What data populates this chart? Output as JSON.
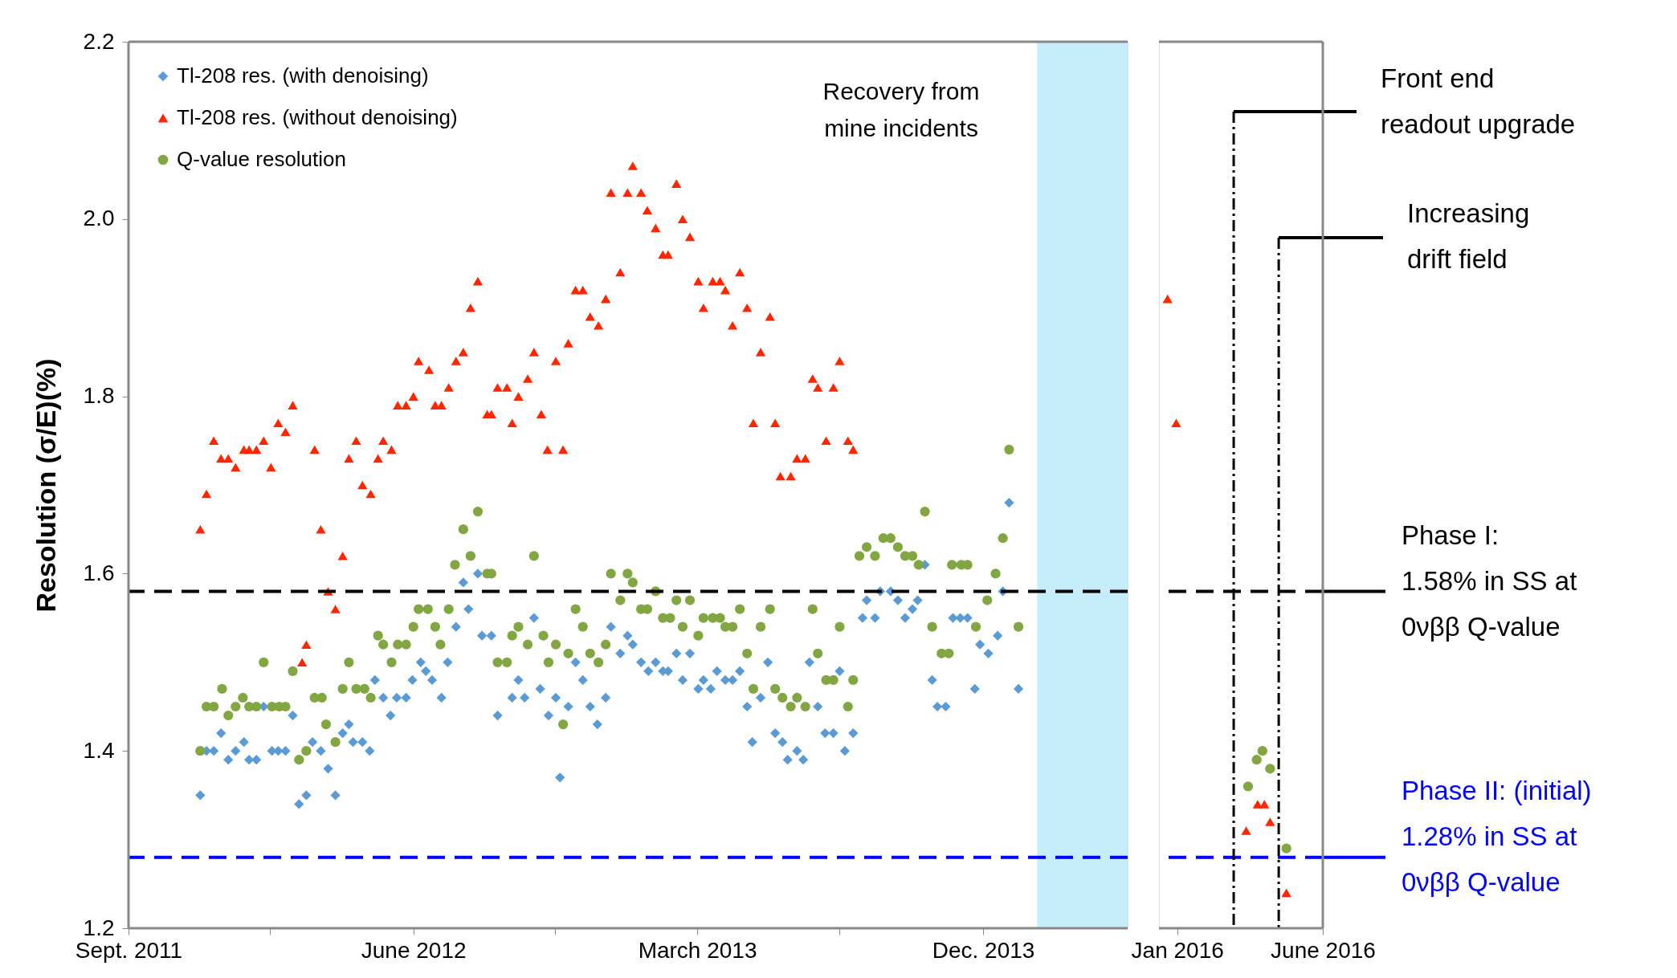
{
  "chart_data": [
    {
      "type": "scatter",
      "ylabel": "Resolution (σ/E)(%)",
      "xlim": [
        "2011-09-01",
        "2014-04-19"
      ],
      "xticks": [
        {
          "value": "2011-09-01",
          "label": "Sept. 2011"
        },
        {
          "value": "2012-01-15",
          "label": null
        },
        {
          "value": "2012-06-01",
          "label": "June 2012"
        },
        {
          "value": "2012-10-15",
          "label": null
        },
        {
          "value": "2013-03-01",
          "label": "March 2013"
        },
        {
          "value": "2013-07-16",
          "label": null
        },
        {
          "value": "2013-12-01",
          "label": "Dec. 2013"
        }
      ],
      "ylim": [
        1.2,
        2.2
      ],
      "yticks": [
        1.2,
        1.4,
        1.6,
        1.8,
        {
          "value": 2.0,
          "label": "2.0"
        },
        2.2
      ],
      "grid": false,
      "legend": "top left",
      "series": [
        {
          "name": "Tl-208 res. (with denoising)",
          "color": "#5b9bd5",
          "marker": "diamond",
          "x": [
            "2011-11-09",
            "2011-11-15",
            "2011-11-22",
            "2011-11-29",
            "2011-12-06",
            "2011-12-13",
            "2011-12-21",
            "2011-12-26",
            "2012-01-02",
            "2012-01-09",
            "2012-01-17",
            "2012-01-23",
            "2012-01-30",
            "2012-02-06",
            "2012-02-12",
            "2012-02-19",
            "2012-02-25",
            "2012-03-04",
            "2012-03-11",
            "2012-03-18",
            "2012-03-25",
            "2012-03-31",
            "2012-04-04",
            "2012-04-13",
            "2012-04-20",
            "2012-04-25",
            "2012-05-03",
            "2012-05-10",
            "2012-05-16",
            "2012-05-25",
            "2012-05-31",
            "2012-06-08",
            "2012-06-13",
            "2012-06-19",
            "2012-06-28",
            "2012-07-04",
            "2012-07-12",
            "2012-07-19",
            "2012-07-24",
            "2012-08-02",
            "2012-08-06",
            "2012-08-15",
            "2012-08-21",
            "2012-09-04",
            "2012-09-10",
            "2012-09-16",
            "2012-09-25",
            "2012-10-01",
            "2012-10-09",
            "2012-10-16",
            "2012-10-20",
            "2012-10-28",
            "2012-11-04",
            "2012-11-11",
            "2012-11-18",
            "2012-11-25",
            "2012-12-03",
            "2012-12-08",
            "2012-12-17",
            "2012-12-24",
            "2012-12-29",
            "2013-01-06",
            "2013-01-13",
            "2013-01-20",
            "2013-01-27",
            "2013-02-01",
            "2013-02-09",
            "2013-02-15",
            "2013-02-22",
            "2013-03-02",
            "2013-03-07",
            "2013-03-14",
            "2013-03-20",
            "2013-03-28",
            "2013-04-04",
            "2013-04-11",
            "2013-04-18",
            "2013-04-23",
            "2013-05-01",
            "2013-05-08",
            "2013-05-15",
            "2013-05-22",
            "2013-05-27",
            "2013-06-05",
            "2013-06-11",
            "2013-06-17",
            "2013-06-25",
            "2013-07-02",
            "2013-07-10",
            "2013-07-16",
            "2013-07-21",
            "2013-07-29",
            "2013-08-07",
            "2013-08-11",
            "2013-08-19",
            "2013-08-24",
            "2013-09-03",
            "2013-09-10",
            "2013-09-17",
            "2013-09-24",
            "2013-09-29",
            "2013-10-06",
            "2013-10-13",
            "2013-10-18",
            "2013-10-26",
            "2013-11-02",
            "2013-11-09",
            "2013-11-16",
            "2013-11-23",
            "2013-11-28",
            "2013-12-06",
            "2013-12-15",
            "2013-12-20",
            "2013-12-26",
            "2014-01-04"
          ],
          "values": [
            1.35,
            1.4,
            1.4,
            1.42,
            1.39,
            1.4,
            1.41,
            1.39,
            1.39,
            1.45,
            1.4,
            1.4,
            1.4,
            1.44,
            1.34,
            1.35,
            1.41,
            1.4,
            1.38,
            1.35,
            1.42,
            1.43,
            1.41,
            1.41,
            1.4,
            1.48,
            1.46,
            1.44,
            1.46,
            1.46,
            1.48,
            1.5,
            1.49,
            1.48,
            1.46,
            1.5,
            1.54,
            1.59,
            1.56,
            1.6,
            1.53,
            1.53,
            1.44,
            1.46,
            1.48,
            1.46,
            1.55,
            1.47,
            1.44,
            1.46,
            1.37,
            1.45,
            1.5,
            1.48,
            1.45,
            1.43,
            1.46,
            1.54,
            1.51,
            1.53,
            1.52,
            1.5,
            1.49,
            1.5,
            1.49,
            1.49,
            1.51,
            1.48,
            1.51,
            1.47,
            1.48,
            1.47,
            1.49,
            1.48,
            1.48,
            1.49,
            1.45,
            1.41,
            1.46,
            1.5,
            1.42,
            1.41,
            1.39,
            1.4,
            1.39,
            1.5,
            1.45,
            1.42,
            1.42,
            1.49,
            1.4,
            1.42,
            1.55,
            1.57,
            1.55,
            1.58,
            1.58,
            1.57,
            1.55,
            1.56,
            1.57,
            1.61,
            1.48,
            1.45,
            1.45,
            1.55,
            1.55,
            1.55,
            1.47,
            1.52,
            1.51,
            1.53,
            1.58,
            1.68,
            1.47
          ]
        },
        {
          "name": "Tl-208 res. (without denoising)",
          "color": "#ff2600",
          "marker": "triangle",
          "x": [
            "2011-11-09",
            "2011-11-15",
            "2011-11-22",
            "2011-11-29",
            "2011-12-06",
            "2011-12-13",
            "2011-12-21",
            "2011-12-26",
            "2012-01-02",
            "2012-01-09",
            "2012-01-16",
            "2012-01-23",
            "2012-01-30",
            "2012-02-06",
            "2012-02-15",
            "2012-02-19",
            "2012-02-27",
            "2012-03-04",
            "2012-03-11",
            "2012-03-18",
            "2012-03-25",
            "2012-03-31",
            "2012-04-07",
            "2012-04-13",
            "2012-04-21",
            "2012-04-28",
            "2012-05-03",
            "2012-05-11",
            "2012-05-17",
            "2012-05-25",
            "2012-06-01",
            "2012-06-06",
            "2012-06-16",
            "2012-06-22",
            "2012-06-28",
            "2012-07-05",
            "2012-07-12",
            "2012-07-19",
            "2012-07-26",
            "2012-08-02",
            "2012-08-11",
            "2012-08-15",
            "2012-08-21",
            "2012-08-30",
            "2012-09-04",
            "2012-09-10",
            "2012-09-19",
            "2012-09-25",
            "2012-10-02",
            "2012-10-08",
            "2012-10-16",
            "2012-10-23",
            "2012-10-28",
            "2012-11-04",
            "2012-11-11",
            "2012-11-18",
            "2012-11-26",
            "2012-12-03",
            "2012-12-08",
            "2012-12-17",
            "2012-12-24",
            "2012-12-29",
            "2013-01-06",
            "2013-01-12",
            "2013-01-20",
            "2013-01-27",
            "2013-02-01",
            "2013-02-09",
            "2013-02-15",
            "2013-02-22",
            "2013-03-02",
            "2013-03-07",
            "2013-03-16",
            "2013-03-23",
            "2013-03-28",
            "2013-04-04",
            "2013-04-11",
            "2013-04-18",
            "2013-04-24",
            "2013-05-01",
            "2013-05-10",
            "2013-05-15",
            "2013-05-20",
            "2013-05-30",
            "2013-06-05",
            "2013-06-13",
            "2013-06-20",
            "2013-06-25",
            "2013-07-03",
            "2013-07-10",
            "2013-07-16",
            "2013-07-24",
            "2013-07-29"
          ],
          "values": [
            1.65,
            1.69,
            1.75,
            1.73,
            1.73,
            1.72,
            1.74,
            1.74,
            1.74,
            1.75,
            1.72,
            1.77,
            1.76,
            1.79,
            1.5,
            1.52,
            1.74,
            1.65,
            1.58,
            1.56,
            1.62,
            1.73,
            1.75,
            1.7,
            1.69,
            1.73,
            1.75,
            1.74,
            1.79,
            1.79,
            1.8,
            1.84,
            1.83,
            1.79,
            1.79,
            1.81,
            1.84,
            1.85,
            1.9,
            1.93,
            1.78,
            1.78,
            1.81,
            1.81,
            1.77,
            1.8,
            1.82,
            1.85,
            1.78,
            1.74,
            1.84,
            1.74,
            1.86,
            1.92,
            1.92,
            1.89,
            1.88,
            1.91,
            2.03,
            1.94,
            2.03,
            2.06,
            2.03,
            2.01,
            1.99,
            1.96,
            1.96,
            2.04,
            2.0,
            1.98,
            1.93,
            1.9,
            1.93,
            1.93,
            1.92,
            1.88,
            1.94,
            1.9,
            1.77,
            1.85,
            1.89,
            1.77,
            1.71,
            1.71,
            1.73,
            1.73,
            1.82,
            1.81,
            1.75,
            1.81,
            1.84,
            1.75,
            1.74
          ]
        },
        {
          "name": "Q-value resolution",
          "color": "#82a641",
          "marker": "circle",
          "x": [
            "2011-11-09",
            "2011-11-15",
            "2011-11-22",
            "2011-11-30",
            "2011-12-06",
            "2011-12-13",
            "2011-12-20",
            "2011-12-26",
            "2012-01-02",
            "2012-01-09",
            "2012-01-17",
            "2012-01-24",
            "2012-01-30",
            "2012-02-06",
            "2012-02-12",
            "2012-02-19",
            "2012-02-27",
            "2012-03-05",
            "2012-03-09",
            "2012-03-18",
            "2012-03-25",
            "2012-03-31",
            "2012-04-07",
            "2012-04-15",
            "2012-04-21",
            "2012-04-28",
            "2012-05-03",
            "2012-05-11",
            "2012-05-17",
            "2012-05-25",
            "2012-06-01",
            "2012-06-06",
            "2012-06-15",
            "2012-06-22",
            "2012-06-27",
            "2012-07-05",
            "2012-07-11",
            "2012-07-19",
            "2012-07-26",
            "2012-08-02",
            "2012-08-11",
            "2012-08-15",
            "2012-08-21",
            "2012-08-30",
            "2012-09-04",
            "2012-09-10",
            "2012-09-19",
            "2012-09-25",
            "2012-10-04",
            "2012-10-09",
            "2012-10-16",
            "2012-10-23",
            "2012-10-28",
            "2012-11-04",
            "2012-11-11",
            "2012-11-18",
            "2012-11-26",
            "2012-12-03",
            "2012-12-08",
            "2012-12-17",
            "2012-12-24",
            "2012-12-29",
            "2013-01-06",
            "2013-01-12",
            "2013-01-20",
            "2013-01-27",
            "2013-02-03",
            "2013-02-09",
            "2013-02-15",
            "2013-02-22",
            "2013-03-02",
            "2013-03-07",
            "2013-03-16",
            "2013-03-23",
            "2013-03-28",
            "2013-04-04",
            "2013-04-11",
            "2013-04-18",
            "2013-04-24",
            "2013-05-01",
            "2013-05-10",
            "2013-05-15",
            "2013-05-22",
            "2013-05-30",
            "2013-06-05",
            "2013-06-13",
            "2013-06-20",
            "2013-06-25",
            "2013-07-03",
            "2013-07-10",
            "2013-07-16",
            "2013-07-24",
            "2013-07-29",
            "2013-08-04",
            "2013-08-11",
            "2013-08-19",
            "2013-08-27",
            "2013-09-03",
            "2013-09-10",
            "2013-09-17",
            "2013-09-24",
            "2013-09-30",
            "2013-10-06",
            "2013-10-13",
            "2013-10-22",
            "2013-10-29",
            "2013-11-01",
            "2013-11-10",
            "2013-11-16",
            "2013-11-24",
            "2013-12-05",
            "2013-12-13",
            "2013-12-20",
            "2013-12-26",
            "2014-01-04"
          ],
          "values": [
            1.4,
            1.45,
            1.45,
            1.47,
            1.44,
            1.45,
            1.46,
            1.45,
            1.45,
            1.5,
            1.45,
            1.45,
            1.45,
            1.49,
            1.39,
            1.4,
            1.46,
            1.46,
            1.43,
            1.41,
            1.47,
            1.5,
            1.47,
            1.47,
            1.46,
            1.53,
            1.52,
            1.5,
            1.52,
            1.52,
            1.54,
            1.56,
            1.56,
            1.54,
            1.52,
            1.56,
            1.61,
            1.65,
            1.62,
            1.67,
            1.6,
            1.6,
            1.5,
            1.5,
            1.53,
            1.54,
            1.52,
            1.62,
            1.53,
            1.5,
            1.52,
            1.43,
            1.51,
            1.56,
            1.54,
            1.51,
            1.5,
            1.52,
            1.6,
            1.57,
            1.6,
            1.59,
            1.56,
            1.56,
            1.58,
            1.55,
            1.55,
            1.57,
            1.54,
            1.57,
            1.53,
            1.55,
            1.55,
            1.55,
            1.54,
            1.54,
            1.56,
            1.51,
            1.47,
            1.54,
            1.56,
            1.47,
            1.46,
            1.45,
            1.46,
            1.45,
            1.56,
            1.51,
            1.48,
            1.48,
            1.54,
            1.45,
            1.48,
            1.62,
            1.63,
            1.62,
            1.64,
            1.64,
            1.63,
            1.62,
            1.62,
            1.61,
            1.67,
            1.54,
            1.51,
            1.51,
            1.61,
            1.61,
            1.61,
            1.54,
            1.57,
            1.6,
            1.64,
            1.74,
            1.54
          ]
        }
      ],
      "ref_lines": [
        {
          "axis": "y",
          "value": 1.58,
          "color": "#000000",
          "line_style": "dashed"
        },
        {
          "axis": "y",
          "value": 1.28,
          "color": "#0000ff",
          "line_style": "dashed"
        }
      ],
      "bands": [
        {
          "axis": "x",
          "from": "2014-01-22",
          "to": "2014-04-19",
          "label": "Recovery from\nmine incidents",
          "color": "#c6eefa"
        }
      ]
    },
    {
      "type": "scatter",
      "xlim": [
        "2015-12-13",
        "2016-06-01"
      ],
      "xticks": [
        {
          "value": "2016-01-01",
          "label": "Jan 2016"
        },
        {
          "value": "2016-06-01",
          "label": "June 2016"
        }
      ],
      "ylim": [
        1.2,
        2.2
      ],
      "tick_labels": "x",
      "grid": false,
      "series": [
        {
          "color": "#ff2600",
          "marker": "triangle",
          "x": [
            "2015-12-22",
            "2015-12-31",
            "2016-03-13",
            "2016-03-25",
            "2016-04-01",
            "2016-04-07",
            "2016-04-24"
          ],
          "values": [
            1.91,
            1.77,
            1.31,
            1.34,
            1.34,
            1.32,
            1.24
          ]
        },
        {
          "color": "#82a641",
          "marker": "circle",
          "x": [
            "2016-03-15",
            "2016-03-24",
            "2016-03-30",
            "2016-04-07",
            "2016-04-24"
          ],
          "values": [
            1.36,
            1.39,
            1.4,
            1.38,
            1.29
          ]
        }
      ],
      "ref_lines": [
        {
          "axis": "y",
          "value": 1.58,
          "label": "Phase I:\n1.58% in SS at\n0νββ Q-value",
          "color": "#000000",
          "line_style": "dashed"
        },
        {
          "axis": "y",
          "value": 1.28,
          "label": "Phase II: (initial)\n1.28% in SS at\n0νββ Q-value",
          "color": "#0000ff",
          "line_style": "dashed"
        },
        {
          "axis": "x",
          "value": "2016-02-29",
          "label": "Front end\nreadout upgrade",
          "color": "#000000",
          "line_style": "dotted"
        },
        {
          "axis": "x",
          "value": "2016-04-16",
          "label": "Increasing\ndrift field",
          "color": "#000000",
          "line_style": "dotted"
        }
      ]
    }
  ]
}
